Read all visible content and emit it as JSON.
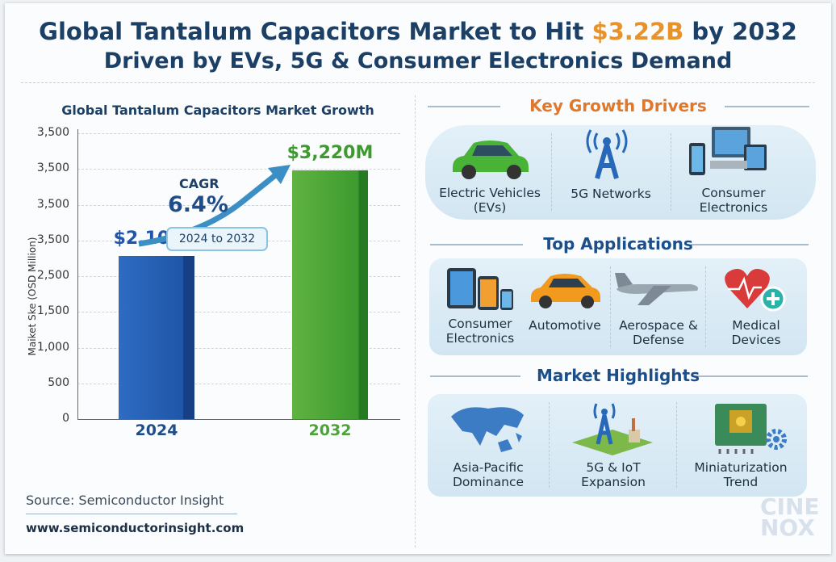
{
  "header": {
    "title_pre": "Global Tantalum Capacitors Market to Hit ",
    "title_highlight": "$3.22B",
    "title_post": " by 2032",
    "subtitle": "Driven by EVs, 5G & Consumer Electronics Demand"
  },
  "chart_data": {
    "type": "bar",
    "title": "Global Tantalum Capacitors Market Growth",
    "categories": [
      "2024",
      "2032"
    ],
    "values": [
      2108,
      3220
    ],
    "value_labels": [
      "$2,108M",
      "$3,220M"
    ],
    "ylabel": "Maiket Ske (OSD Million)",
    "ytick_labels": [
      "3,500",
      "3,500",
      "3,500",
      "3,500",
      "2,500",
      "1,500",
      "1,000",
      "500",
      "0"
    ],
    "ylim": [
      0,
      3700
    ],
    "grid": true,
    "colors": [
      "#2462b8",
      "#47a534"
    ],
    "annotation": {
      "label": "CAGR",
      "value": "6.4%",
      "period": "2024 to 2032"
    }
  },
  "drivers": {
    "heading": "Key Growth Drivers",
    "items": [
      {
        "label": "Electric Vehicles (EVs)",
        "icon": "car-icon"
      },
      {
        "label": "5G Networks",
        "icon": "cell-tower-icon"
      },
      {
        "label": "Consumer Electronics",
        "icon": "devices-icon"
      }
    ]
  },
  "applications": {
    "heading": "Top Applications",
    "items": [
      {
        "label": "Consumer Electronics",
        "icon": "devices-icon"
      },
      {
        "label": "Automotive",
        "icon": "car-icon"
      },
      {
        "label": "Aerospace & Defense",
        "icon": "airplane-icon"
      },
      {
        "label": "Medical Devices",
        "icon": "heart-icon"
      }
    ]
  },
  "highlights": {
    "heading": "Market Highlights",
    "items": [
      {
        "label": "Asia-Pacific Dominance",
        "icon": "map-icon"
      },
      {
        "label": "5G & IoT Expansion",
        "icon": "cell-tower-icon"
      },
      {
        "label": "Miniaturization Trend",
        "icon": "chip-icon"
      }
    ]
  },
  "footer": {
    "source": "Source: Semiconductor Insight",
    "url": "www.semiconductorinsight.com"
  },
  "watermark": "CINE NOX"
}
